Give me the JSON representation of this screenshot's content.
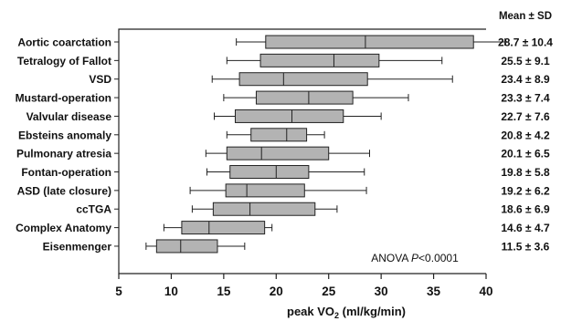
{
  "chart_data": {
    "type": "boxplot",
    "orientation": "horizontal",
    "xlabel_main": "peak VO",
    "xlabel_sub": "2",
    "xlabel_units": " (ml/kg/min)",
    "xlim": [
      5,
      40
    ],
    "xticks": [
      "5",
      "10",
      "15",
      "20",
      "25",
      "30",
      "35",
      "40"
    ],
    "stats_header": "Mean ± SD",
    "annotation_main": "ANOVA ",
    "annotation_italic": "P",
    "annotation_value": "<0.0001",
    "box_color": "#b3b3b3",
    "grid": false,
    "categories": [
      {
        "name": "Aortic coarctation",
        "min": 16.2,
        "q1": 19.0,
        "median": 28.5,
        "q3": 38.8,
        "max": 41.8,
        "stat": "28.7 ± 10.4"
      },
      {
        "name": "Tetralogy of Fallot",
        "min": 15.3,
        "q1": 18.5,
        "median": 25.5,
        "q3": 29.8,
        "max": 35.8,
        "stat": "25.5 ± 9.1"
      },
      {
        "name": "VSD",
        "min": 13.9,
        "q1": 16.5,
        "median": 20.7,
        "q3": 28.7,
        "max": 36.8,
        "stat": "23.4 ± 8.9"
      },
      {
        "name": "Mustard-operation",
        "min": 15.0,
        "q1": 18.1,
        "median": 23.1,
        "q3": 27.3,
        "max": 32.6,
        "stat": "23.3 ± 7.4"
      },
      {
        "name": "Valvular disease",
        "min": 14.1,
        "q1": 16.1,
        "median": 21.5,
        "q3": 26.4,
        "max": 30.0,
        "stat": "22.7 ± 7.6"
      },
      {
        "name": "Ebsteins anomaly",
        "min": 15.3,
        "q1": 17.6,
        "median": 21.0,
        "q3": 22.9,
        "max": 24.6,
        "stat": "20.8 ± 4.2"
      },
      {
        "name": "Pulmonary atresia",
        "min": 13.3,
        "q1": 15.3,
        "median": 18.6,
        "q3": 25.0,
        "max": 28.9,
        "stat": "20.1 ± 6.5"
      },
      {
        "name": "Fontan-operation",
        "min": 13.4,
        "q1": 15.6,
        "median": 20.0,
        "q3": 23.1,
        "max": 28.4,
        "stat": "19.8 ± 5.8"
      },
      {
        "name": "ASD (late closure)",
        "min": 11.8,
        "q1": 15.2,
        "median": 17.2,
        "q3": 22.7,
        "max": 28.6,
        "stat": "19.2 ± 6.2"
      },
      {
        "name": "ccTGA",
        "min": 12.0,
        "q1": 14.0,
        "median": 17.5,
        "q3": 23.7,
        "max": 25.8,
        "stat": "18.6 ± 6.9"
      },
      {
        "name": "Complex Anatomy",
        "min": 9.3,
        "q1": 11.0,
        "median": 13.6,
        "q3": 18.9,
        "max": 19.6,
        "stat": "14.6 ± 4.7"
      },
      {
        "name": "Eisenmenger",
        "min": 7.6,
        "q1": 8.6,
        "median": 10.9,
        "q3": 14.4,
        "max": 17.0,
        "stat": "11.5 ± 3.6"
      }
    ]
  }
}
